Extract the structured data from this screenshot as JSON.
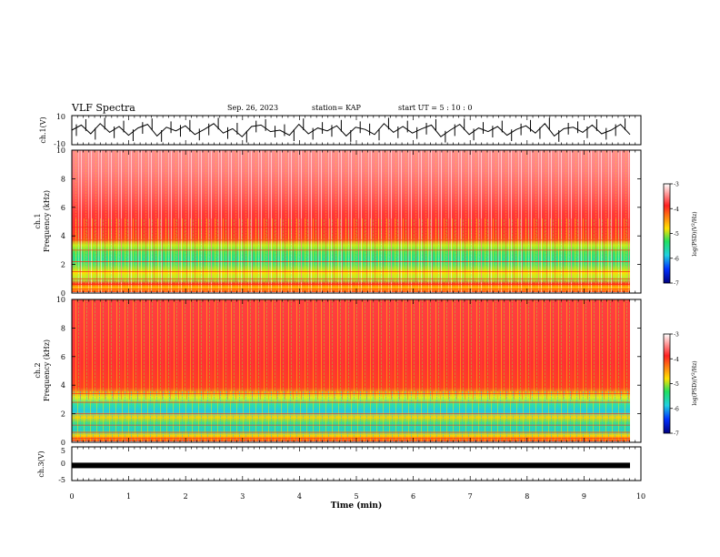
{
  "header": {
    "title": "VLF Spectra",
    "date": "Sep. 26, 2023",
    "station": "station= KAP",
    "start": "start  UT =   5 : 10 : 0"
  },
  "chart_data": [
    {
      "type": "line",
      "ylabel": "ch.1(V)",
      "ylim": [
        -10,
        10
      ],
      "yticks": [
        10,
        -10
      ],
      "xlim": [
        0,
        10
      ],
      "y": [
        0,
        3.5,
        -2.5,
        4.5,
        -1.5,
        2.5,
        -3.5,
        1.5,
        4.0,
        -4.0,
        2.0,
        -0.5,
        3.0,
        -3.0,
        0.5,
        4.5,
        -2.0,
        1.0,
        -4.5,
        2.5,
        3.5,
        -1.0,
        0,
        -3.5,
        4.0,
        -2.5,
        1.5,
        -0.5,
        3.0,
        -4.0,
        2.0,
        0.5,
        -3.0,
        4.5,
        -1.5,
        2.5,
        -2.0,
        1.0,
        3.5,
        -4.5,
        0,
        4.0,
        -3.0,
        1.5,
        -1.0,
        2.5,
        -3.5,
        0.5,
        3.0,
        -2.0,
        4.5,
        -4.0,
        1.0,
        2.0,
        -1.5,
        3.5,
        -2.5,
        0,
        4.0,
        -3.0
      ]
    },
    {
      "type": "heatmap",
      "ylabel": "ch.1\nFrequency (kHz)",
      "ylim": [
        0,
        10
      ],
      "yticks": [
        0,
        2,
        4,
        6,
        8,
        10
      ],
      "xlim": [
        0,
        10
      ],
      "colorbar": {
        "label": "log(PSD)(V²/Hz)",
        "range": [
          -7,
          -3
        ],
        "ticks": [
          -3,
          -4,
          -5,
          -6,
          -7
        ]
      }
    },
    {
      "type": "heatmap",
      "ylabel": "ch.2\nFrequency (kHz)",
      "ylim": [
        0,
        10
      ],
      "yticks": [
        0,
        2,
        4,
        6,
        8,
        10
      ],
      "xlim": [
        0,
        10
      ],
      "colorbar": {
        "label": "log(PSD)(V²/Hz)",
        "range": [
          -7,
          -3
        ],
        "ticks": [
          -3,
          -4,
          -5,
          -6,
          -7
        ]
      }
    },
    {
      "type": "line",
      "ylabel": "ch.3(V)",
      "ylim": [
        -5,
        5
      ],
      "yticks": [
        5,
        0,
        -5
      ],
      "xlim": [
        0,
        10
      ],
      "xticks": [
        0,
        1,
        2,
        3,
        4,
        5,
        6,
        7,
        8,
        9,
        10
      ],
      "xlabel": "Time  (min)",
      "y_constant": -0.5
    }
  ],
  "colors": {
    "spectrum_high": "#ff2020",
    "spectrum_mid": "#ffd000",
    "spectrum_low": "#20e070",
    "spectrum_floor": "#20c8e0",
    "line": "#000000"
  }
}
